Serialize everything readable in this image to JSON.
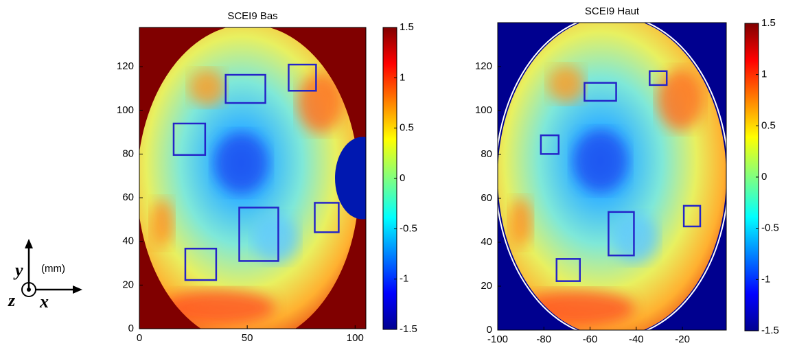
{
  "axes_legend": {
    "y": "y",
    "x": "x",
    "z": "z",
    "unit": "(mm)"
  },
  "chart_data": [
    {
      "type": "heatmap",
      "title": "SCEI9 Bas",
      "outside_color": "#800000",
      "box_color": "#2424c8",
      "xlim": [
        0,
        105
      ],
      "ylim": [
        0,
        138
      ],
      "xticks": [
        0,
        50,
        100
      ],
      "yticks": [
        0,
        20,
        40,
        60,
        80,
        100,
        120
      ],
      "colorbar": {
        "lim": [
          -1.5,
          1.5
        ],
        "ticks": [
          -1.5,
          -1,
          -0.5,
          0,
          0.5,
          1,
          1.5
        ]
      },
      "boxes": [
        {
          "x": [
            40,
            58.4
          ],
          "y": [
            103.4,
            116.3
          ]
        },
        {
          "x": [
            69.2,
            81.9
          ],
          "y": [
            109,
            121
          ]
        },
        {
          "x": [
            15.9,
            30.5
          ],
          "y": [
            79.6,
            94
          ]
        },
        {
          "x": [
            46.3,
            64.4
          ],
          "y": [
            31,
            55.5
          ]
        },
        {
          "x": [
            81.3,
            92.4
          ],
          "y": [
            44.2,
            57.7
          ]
        },
        {
          "x": [
            21.3,
            35.6
          ],
          "y": [
            22.3,
            36.7
          ]
        }
      ]
    },
    {
      "type": "heatmap",
      "title": "SCEI9 Haut",
      "outside_color": "#00008f",
      "box_color": "#2424c8",
      "xlim": [
        -100,
        -1
      ],
      "ylim": [
        0,
        140
      ],
      "xticks": [
        -100,
        -80,
        -60,
        -40,
        -20
      ],
      "yticks": [
        0,
        20,
        40,
        60,
        80,
        100,
        120
      ],
      "colorbar": {
        "lim": [
          -1.5,
          1.5
        ],
        "ticks": [
          -1.5,
          -1,
          -0.5,
          0,
          0.5,
          1,
          1.5
        ]
      },
      "boxes": [
        {
          "x": [
            -62.4,
            -48.7
          ],
          "y": [
            104.4,
            112.6
          ]
        },
        {
          "x": [
            -34.2,
            -26.8
          ],
          "y": [
            111.6,
            117.9
          ]
        },
        {
          "x": [
            -81.3,
            -73.6
          ],
          "y": [
            80.2,
            88.7
          ]
        },
        {
          "x": [
            -52,
            -41
          ],
          "y": [
            34,
            53.8
          ]
        },
        {
          "x": [
            -19.4,
            -12.3
          ],
          "y": [
            47.2,
            56.6
          ]
        },
        {
          "x": [
            -74.5,
            -64.4
          ],
          "y": [
            22.3,
            32.4
          ]
        }
      ]
    }
  ]
}
